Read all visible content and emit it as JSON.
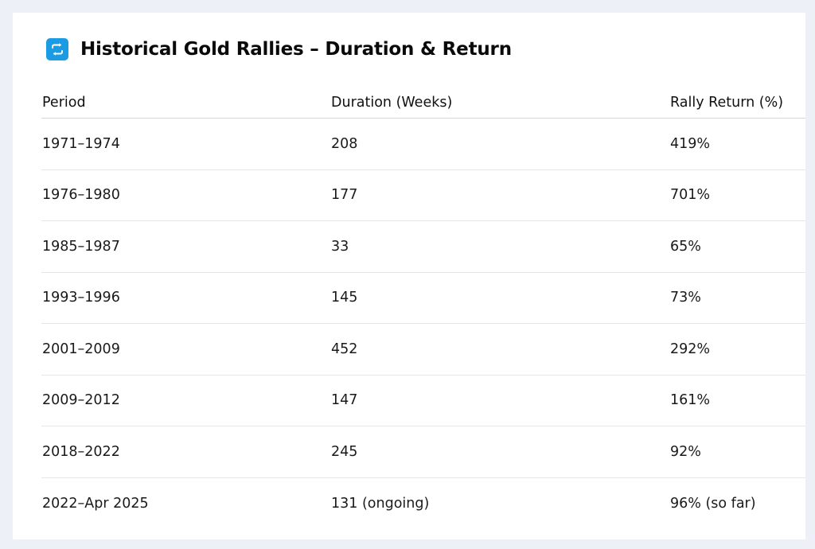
{
  "title": {
    "icon": "repeat-arrows-icon",
    "text": "Historical Gold Rallies – Duration & Return",
    "icon_color": "#1b9be3"
  },
  "table": {
    "headers": [
      "Period",
      "Duration (Weeks)",
      "Rally Return (%)"
    ],
    "rows": [
      [
        "1971–1974",
        "208",
        "419%"
      ],
      [
        "1976–1980",
        "177",
        "701%"
      ],
      [
        "1985–1987",
        "33",
        "65%"
      ],
      [
        "1993–1996",
        "145",
        "73%"
      ],
      [
        "2001–2009",
        "452",
        "292%"
      ],
      [
        "2009–2012",
        "147",
        "161%"
      ],
      [
        "2018–2022",
        "245",
        "92%"
      ],
      [
        "2022–Apr 2025",
        "131 (ongoing)",
        "96% (so far)"
      ]
    ]
  }
}
